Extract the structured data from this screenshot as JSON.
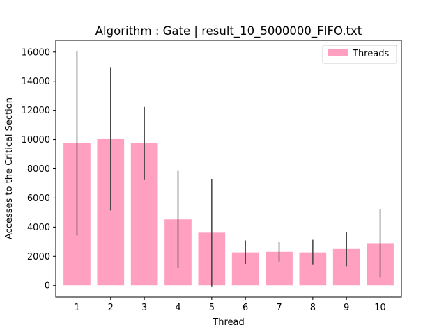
{
  "chart_data": {
    "type": "bar",
    "title": "Algorithm : Gate | result_10_5000000_FIFO.txt",
    "xlabel": "Thread",
    "ylabel": "Accesses to the Critical Section",
    "categories": [
      "1",
      "2",
      "3",
      "4",
      "5",
      "6",
      "7",
      "8",
      "9",
      "10"
    ],
    "series": [
      {
        "name": "Threads",
        "values": [
          9750,
          10030,
          9750,
          4530,
          3620,
          2270,
          2310,
          2270,
          2500,
          2900
        ],
        "error": [
          6330,
          4890,
          2480,
          3320,
          3690,
          820,
          660,
          860,
          1170,
          2340
        ]
      }
    ],
    "ylim": [
      -800,
      16800
    ],
    "yticks": [
      0,
      2000,
      4000,
      6000,
      8000,
      10000,
      12000,
      14000,
      16000
    ],
    "grid": false,
    "legend_position": "top-right",
    "colors": {
      "bar": "#ffa0c0",
      "error_bar": "#404040",
      "axis": "#000000",
      "legend_border": "#cccccc"
    }
  }
}
